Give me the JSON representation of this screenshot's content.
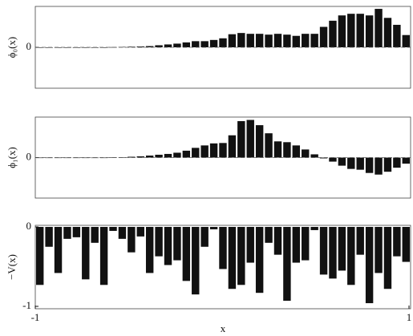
{
  "chart_data": [
    {
      "type": "bar",
      "ylabel": "ϕ₀(x)",
      "color": "#111111",
      "xlim": [
        -1,
        1
      ],
      "ylim": [
        -1,
        1
      ],
      "yticks": [
        0
      ],
      "grid": true,
      "values": [
        0,
        0,
        0,
        0,
        0,
        0,
        0,
        0,
        0.005,
        0.01,
        0.015,
        0.02,
        0.03,
        0.05,
        0.07,
        0.09,
        0.12,
        0.15,
        0.15,
        0.18,
        0.22,
        0.32,
        0.35,
        0.33,
        0.33,
        0.31,
        0.33,
        0.31,
        0.28,
        0.33,
        0.33,
        0.5,
        0.65,
        0.78,
        0.82,
        0.82,
        0.78,
        0.94,
        0.72,
        0.55,
        0.3
      ]
    },
    {
      "type": "bar",
      "ylabel": "ϕ₁(x)",
      "color": "#111111",
      "xlim": [
        -1,
        1
      ],
      "ylim": [
        -1,
        1
      ],
      "yticks": [
        0
      ],
      "grid": true,
      "values": [
        0,
        0,
        0,
        0,
        0,
        0,
        0,
        0,
        0.005,
        0.01,
        0.02,
        0.03,
        0.05,
        0.07,
        0.09,
        0.12,
        0.17,
        0.24,
        0.3,
        0.35,
        0.36,
        0.55,
        0.9,
        0.93,
        0.8,
        0.6,
        0.4,
        0.38,
        0.3,
        0.2,
        0.08,
        -0.02,
        -0.1,
        -0.2,
        -0.28,
        -0.3,
        -0.38,
        -0.42,
        -0.35,
        -0.25,
        -0.15
      ]
    },
    {
      "type": "bar",
      "ylabel": "−V(x)",
      "xlabel": "x",
      "color": "#111111",
      "xlim": [
        -1,
        1
      ],
      "ylim": [
        -1.03,
        0.02
      ],
      "yticks": [
        0,
        -1
      ],
      "xticks": [
        -1,
        1
      ],
      "grid": false,
      "values": [
        -0.73,
        -0.25,
        -0.58,
        -0.15,
        -0.13,
        -0.66,
        -0.2,
        -0.73,
        -0.05,
        -0.15,
        -0.32,
        -0.12,
        -0.58,
        -0.37,
        -0.48,
        -0.42,
        -0.68,
        -0.85,
        -0.25,
        -0.03,
        -0.53,
        -0.78,
        -0.73,
        -0.45,
        -0.83,
        -0.2,
        -0.35,
        -0.93,
        -0.45,
        -0.42,
        -0.04,
        -0.6,
        -0.65,
        -0.55,
        -0.73,
        -0.35,
        -0.96,
        -0.58,
        -0.78,
        -0.37,
        -0.44
      ]
    }
  ]
}
